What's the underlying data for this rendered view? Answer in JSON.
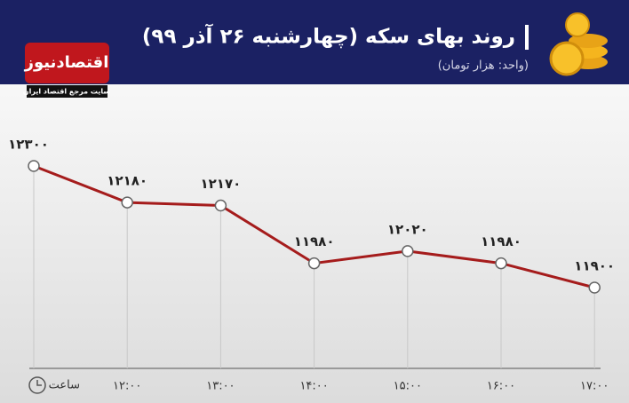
{
  "chart_data": {
    "type": "line",
    "title": "روند بهای سکه (چهارشنبه ۲۶ آذر ۹۹)",
    "subtitle": "(واحد: هزار تومان)",
    "brand": "اقتصادنیوز",
    "brand_tagline": "سایت مرجع اقتصاد ایران",
    "x_label": "ساعت",
    "categories": [
      null,
      "۱۲:۰۰",
      "۱۳:۰۰",
      "۱۴:۰۰",
      "۱۵:۰۰",
      "۱۶:۰۰",
      "۱۷:۰۰"
    ],
    "values": [
      12300,
      12180,
      12170,
      11980,
      12020,
      11980,
      11900
    ],
    "value_labels": [
      "۱۲۳۰۰",
      "۱۲۱۸۰",
      "۱۲۱۷۰",
      "۱۱۹۸۰",
      "۱۲۰۲۰",
      "۱۱۹۸۰",
      "۱۱۹۰۰"
    ],
    "color": "#a51c1c"
  }
}
